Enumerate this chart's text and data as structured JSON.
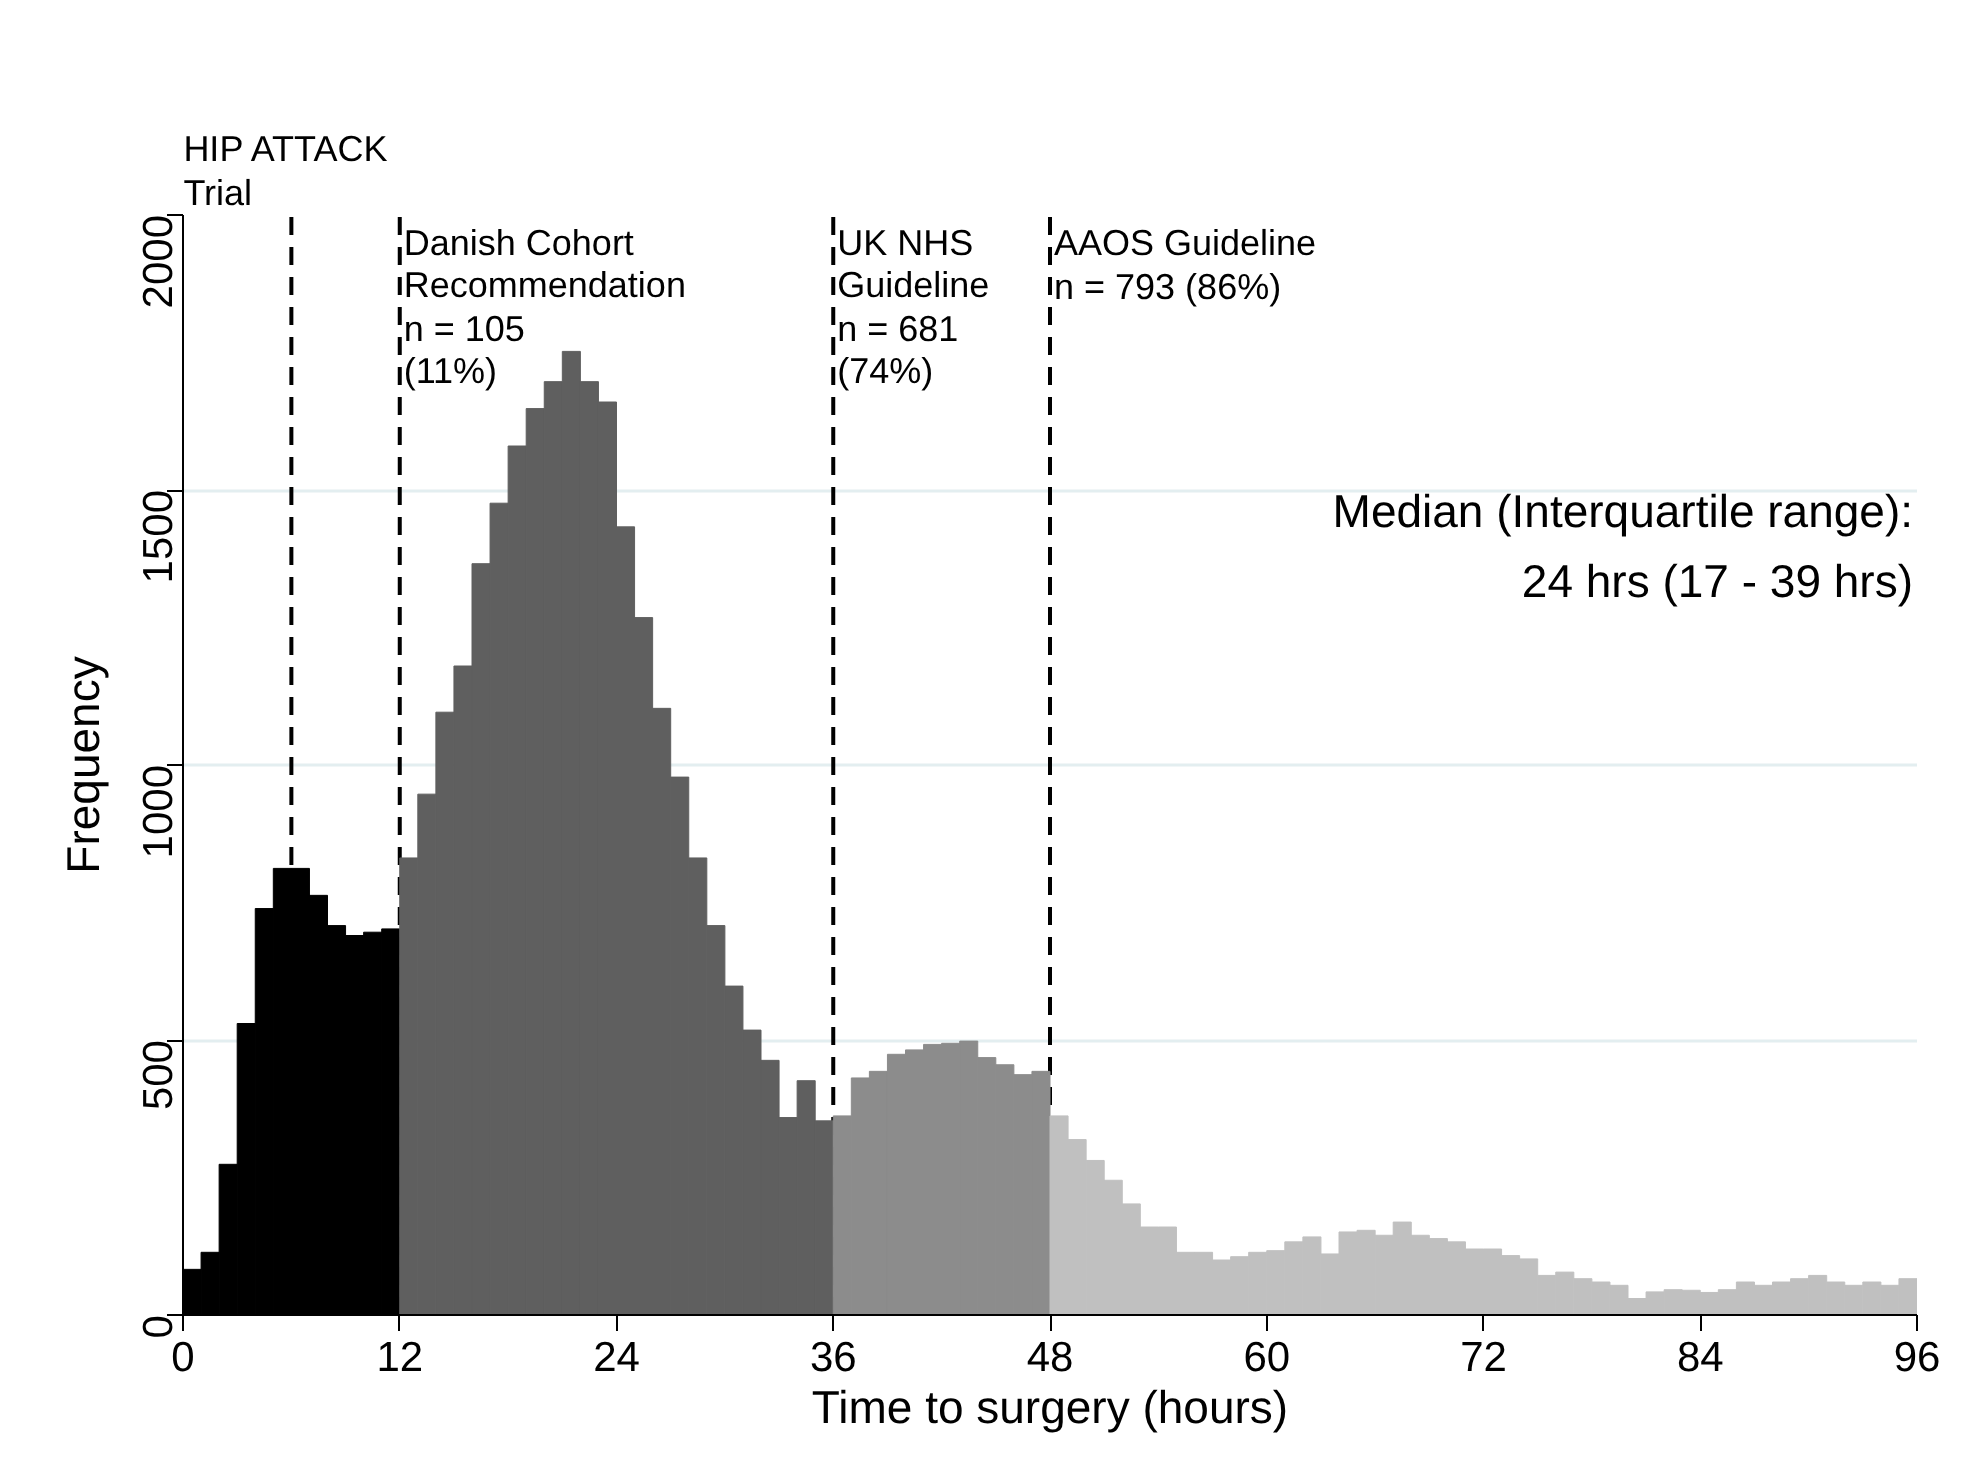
{
  "chart_data": {
    "type": "histogram",
    "xlabel": "Time to surgery (hours)",
    "ylabel": "Frequency",
    "bins": [
      0,
      1,
      2,
      3,
      4,
      5,
      6,
      7,
      8,
      9,
      10,
      11,
      12,
      13,
      14,
      15,
      16,
      17,
      18,
      19,
      20,
      21,
      22,
      23,
      24,
      25,
      26,
      27,
      28,
      29,
      30,
      31,
      32,
      33,
      34,
      35,
      36,
      37,
      38,
      39,
      40,
      41,
      42,
      43,
      44,
      45,
      46,
      47,
      48,
      49,
      50,
      51,
      52,
      53,
      54,
      55,
      56,
      57,
      58,
      59,
      60,
      61,
      62,
      63,
      64,
      65,
      66,
      67,
      68,
      69,
      70,
      71,
      72,
      73,
      74,
      75,
      76,
      77,
      78,
      79,
      80,
      81,
      82,
      83,
      84,
      85,
      86,
      87,
      88,
      89,
      90,
      91,
      92,
      93,
      94,
      95,
      96
    ],
    "values": [
      83,
      114,
      274,
      530,
      739,
      812,
      812,
      763,
      708,
      690,
      696,
      702,
      831,
      947,
      1096,
      1180,
      1366,
      1476,
      1580,
      1648,
      1697,
      1752,
      1697,
      1660,
      1433,
      1268,
      1103,
      978,
      831,
      708,
      598,
      518,
      463,
      359,
      426,
      353,
      362,
      431,
      443,
      474,
      482,
      492,
      494,
      498,
      468,
      455,
      437,
      443,
      362,
      319,
      281,
      245,
      202,
      160,
      160,
      114,
      114,
      100,
      106,
      114,
      117,
      133,
      142,
      111,
      151,
      154,
      145,
      169,
      145,
      139,
      133,
      120,
      120,
      108,
      102,
      72,
      78,
      66,
      60,
      54,
      30,
      42,
      46,
      45,
      41,
      46,
      60,
      54,
      60,
      66,
      72,
      60,
      54,
      60,
      54,
      66
    ],
    "colors": [
      "#000000",
      "#000000",
      "#000000",
      "#000000",
      "#000000",
      "#000000",
      "#000000",
      "#000000",
      "#000000",
      "#000000",
      "#000000",
      "#000000",
      "#5f5f5f",
      "#5f5f5f",
      "#5f5f5f",
      "#5f5f5f",
      "#5f5f5f",
      "#5f5f5f",
      "#5f5f5f",
      "#5f5f5f",
      "#5f5f5f",
      "#5f5f5f",
      "#5f5f5f",
      "#5f5f5f",
      "#5f5f5f",
      "#5f5f5f",
      "#5f5f5f",
      "#5f5f5f",
      "#5f5f5f",
      "#5f5f5f",
      "#5f5f5f",
      "#5f5f5f",
      "#5f5f5f",
      "#5f5f5f",
      "#5f5f5f",
      "#5f5f5f",
      "#8c8c8c",
      "#8c8c8c",
      "#8c8c8c",
      "#8c8c8c",
      "#8c8c8c",
      "#8c8c8c",
      "#8c8c8c",
      "#8c8c8c",
      "#8c8c8c",
      "#8c8c8c",
      "#8c8c8c",
      "#8c8c8c",
      "#c0c0c0",
      "#c0c0c0",
      "#c0c0c0",
      "#c0c0c0",
      "#c0c0c0",
      "#c0c0c0",
      "#c0c0c0",
      "#c0c0c0",
      "#c0c0c0",
      "#c0c0c0",
      "#c0c0c0",
      "#c0c0c0",
      "#c0c0c0",
      "#c0c0c0",
      "#c0c0c0",
      "#c0c0c0",
      "#c0c0c0",
      "#c0c0c0",
      "#c0c0c0",
      "#c0c0c0",
      "#c0c0c0",
      "#c0c0c0",
      "#c0c0c0",
      "#c0c0c0",
      "#c0c0c0",
      "#c0c0c0",
      "#c0c0c0",
      "#c0c0c0",
      "#c0c0c0",
      "#c0c0c0",
      "#c0c0c0",
      "#c0c0c0",
      "#c0c0c0",
      "#c0c0c0",
      "#c0c0c0",
      "#c0c0c0",
      "#c0c0c0",
      "#c0c0c0",
      "#c0c0c0",
      "#c0c0c0",
      "#c0c0c0",
      "#c0c0c0",
      "#c0c0c0",
      "#c0c0c0",
      "#c0c0c0",
      "#c0c0c0",
      "#c0c0c0",
      "#c0c0c0"
    ],
    "xlim": [
      0,
      96
    ],
    "xticks": [
      0,
      12,
      24,
      36,
      48,
      60,
      72,
      84,
      96
    ],
    "ylim": [
      0,
      2000
    ],
    "yticks": [
      0,
      500,
      1000,
      1500,
      2000
    ],
    "grid": "y",
    "ref_lines": [
      {
        "axis": "x",
        "value": 6,
        "label": "HIP ATTACK\nTrial",
        "color": "#000000",
        "line_style": "dashed"
      },
      {
        "axis": "x",
        "value": 12,
        "label": "Danish Cohort\nRecommendation",
        "color": "#000000",
        "line_style": "dashed"
      },
      {
        "axis": "x",
        "value": 36,
        "label": "UK NHS\nGuideline",
        "color": "#000000",
        "line_style": "dashed"
      },
      {
        "axis": "x",
        "value": 48,
        "label": "AAOS Guideline",
        "color": "#000000",
        "line_style": "dashed"
      }
    ],
    "annotations": [
      "Median (Interquartile range):\n24 hrs (17 - 39 hrs)",
      {
        "text": "n = 105\n(11%)",
        "x": 12,
        "y": 1830
      },
      {
        "text": "n = 681\n(74%)",
        "x": 36,
        "y": 1830
      },
      {
        "text": "n = 793 (86%)",
        "x": 48,
        "y": 1905
      }
    ]
  }
}
